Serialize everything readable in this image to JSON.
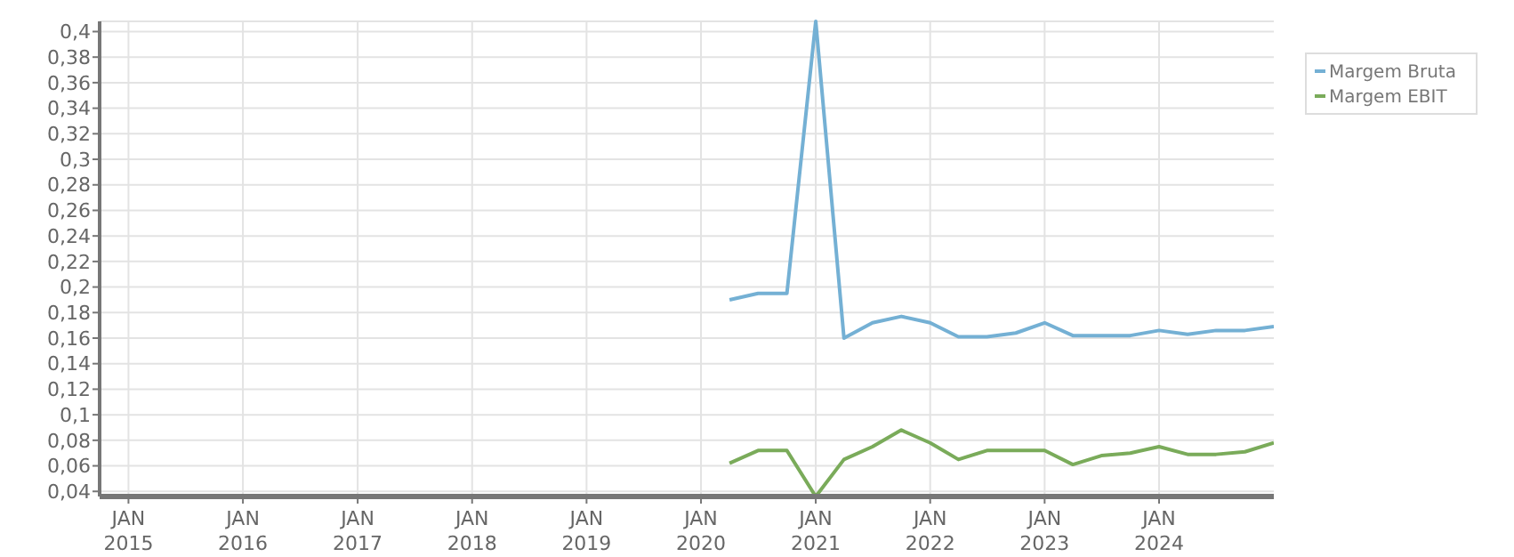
{
  "chart_data": {
    "type": "line",
    "x": [
      "2020-04",
      "2020-07",
      "2020-10",
      "2021-01",
      "2021-04",
      "2021-07",
      "2021-10",
      "2022-01",
      "2022-04",
      "2022-07",
      "2022-10",
      "2023-01",
      "2023-04",
      "2023-07",
      "2023-10",
      "2024-01",
      "2024-04",
      "2024-07",
      "2024-10",
      "2025-01"
    ],
    "series": [
      {
        "name": "Margem Bruta",
        "color": "#74b0d4",
        "values": [
          0.19,
          0.195,
          0.195,
          0.408,
          0.16,
          0.172,
          0.177,
          0.172,
          0.161,
          0.161,
          0.164,
          0.172,
          0.162,
          0.162,
          0.162,
          0.166,
          0.163,
          0.166,
          0.166,
          0.169
        ]
      },
      {
        "name": "Margem EBIT",
        "color": "#7aab5a",
        "values": [
          0.062,
          0.072,
          0.072,
          0.036,
          0.065,
          0.075,
          0.088,
          0.078,
          0.065,
          0.072,
          0.072,
          0.072,
          0.061,
          0.068,
          0.07,
          0.075,
          0.069,
          0.069,
          0.071,
          0.078
        ]
      }
    ],
    "xlim": [
      "2014-10",
      "2025-01"
    ],
    "xticks": [
      {
        "value": "2015-01",
        "label": "JAN\n2015"
      },
      {
        "value": "2016-01",
        "label": "JAN\n2016"
      },
      {
        "value": "2017-01",
        "label": "JAN\n2017"
      },
      {
        "value": "2018-01",
        "label": "JAN\n2018"
      },
      {
        "value": "2019-01",
        "label": "JAN\n2019"
      },
      {
        "value": "2020-01",
        "label": "JAN\n2020"
      },
      {
        "value": "2021-01",
        "label": "JAN\n2021"
      },
      {
        "value": "2022-01",
        "label": "JAN\n2022"
      },
      {
        "value": "2023-01",
        "label": "JAN\n2023"
      },
      {
        "value": "2024-01",
        "label": "JAN\n2024"
      }
    ],
    "ylim": [
      0.036,
      0.408
    ],
    "yticks": [
      {
        "value": 0.04,
        "label": "0,04"
      },
      {
        "value": 0.06,
        "label": "0,06"
      },
      {
        "value": 0.08,
        "label": "0,08"
      },
      {
        "value": 0.1,
        "label": "0,1"
      },
      {
        "value": 0.12,
        "label": "0,12"
      },
      {
        "value": 0.14,
        "label": "0,14"
      },
      {
        "value": 0.16,
        "label": "0,16"
      },
      {
        "value": 0.18,
        "label": "0,18"
      },
      {
        "value": 0.2,
        "label": "0,2"
      },
      {
        "value": 0.22,
        "label": "0,22"
      },
      {
        "value": 0.24,
        "label": "0,24"
      },
      {
        "value": 0.26,
        "label": "0,26"
      },
      {
        "value": 0.28,
        "label": "0,28"
      },
      {
        "value": 0.3,
        "label": "0,3"
      },
      {
        "value": 0.32,
        "label": "0,32"
      },
      {
        "value": 0.34,
        "label": "0,34"
      },
      {
        "value": 0.36,
        "label": "0,36"
      },
      {
        "value": 0.38,
        "label": "0,38"
      },
      {
        "value": 0.4,
        "label": "0,4"
      }
    ],
    "grid": true,
    "legend": "top right",
    "line_style": "solid",
    "marker": "none"
  }
}
